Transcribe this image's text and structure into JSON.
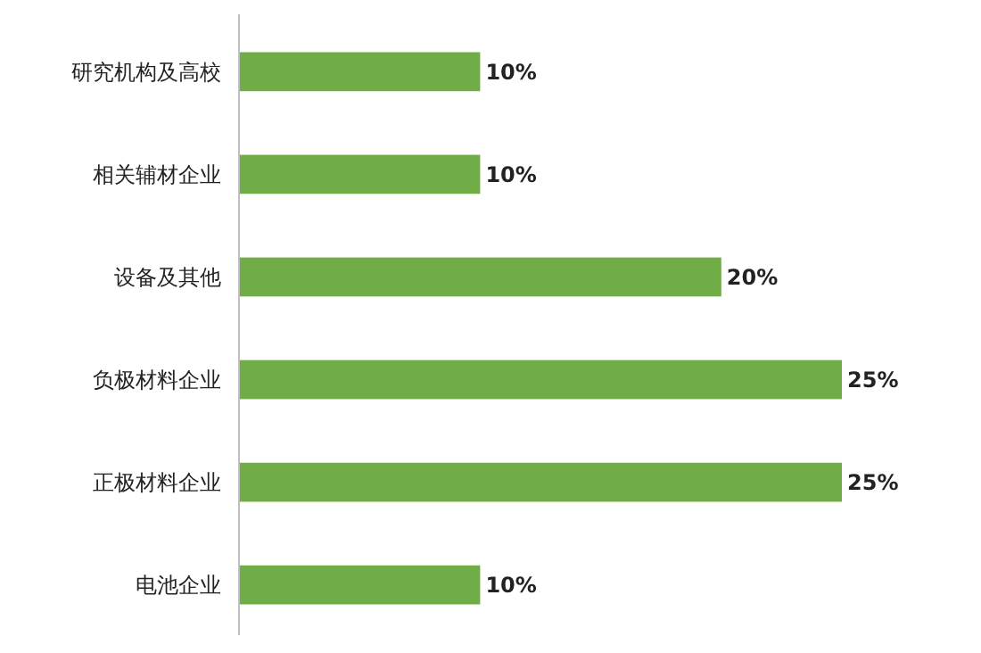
{
  "chart_data": {
    "type": "bar",
    "orientation": "horizontal",
    "categories": [
      "研究机构及高校",
      "相关辅材企业",
      "设备及其他",
      "负极材料企业",
      "正极材料企业",
      "电池企业"
    ],
    "values": [
      10,
      10,
      20,
      25,
      25,
      10
    ],
    "value_labels": [
      "10%",
      "10%",
      "20%",
      "25%",
      "25%",
      "10%"
    ],
    "color": "#70ad47"
  }
}
